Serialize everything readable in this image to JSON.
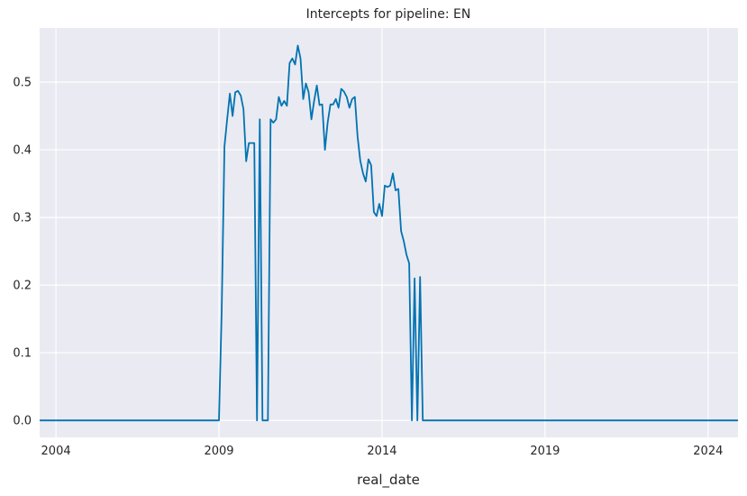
{
  "chart_data": {
    "type": "line",
    "title": "Intercepts for pipeline: EN",
    "xlabel": "real_date",
    "ylabel": "",
    "x_tick_labels": [
      "2004",
      "2009",
      "2014",
      "2019",
      "2024"
    ],
    "y_tick_labels": [
      "0.0",
      "0.1",
      "0.2",
      "0.3",
      "0.4",
      "0.5"
    ],
    "xlim": [
      "2003-07",
      "2024-12"
    ],
    "ylim": [
      -0.025,
      0.58
    ],
    "grid": true,
    "legend": "none",
    "series": [
      {
        "color": "#0173b2",
        "x": [
          "2003-07",
          "2009-01",
          "2009-02",
          "2009-03",
          "2009-04",
          "2009-05",
          "2009-06",
          "2009-07",
          "2009-08",
          "2009-09",
          "2009-10",
          "2009-11",
          "2009-12",
          "2010-01",
          "2010-02",
          "2010-03",
          "2010-04",
          "2010-05",
          "2010-06",
          "2010-07",
          "2010-08",
          "2010-09",
          "2010-10",
          "2010-11",
          "2010-12",
          "2011-01",
          "2011-02",
          "2011-03",
          "2011-04",
          "2011-05",
          "2011-06",
          "2011-07",
          "2011-08",
          "2011-09",
          "2011-10",
          "2011-11",
          "2011-12",
          "2012-01",
          "2012-02",
          "2012-03",
          "2012-04",
          "2012-05",
          "2012-06",
          "2012-07",
          "2012-08",
          "2012-09",
          "2012-10",
          "2012-11",
          "2012-12",
          "2013-01",
          "2013-02",
          "2013-03",
          "2013-04",
          "2013-05",
          "2013-06",
          "2013-07",
          "2013-08",
          "2013-09",
          "2013-10",
          "2013-11",
          "2013-12",
          "2014-01",
          "2014-02",
          "2014-03",
          "2014-04",
          "2014-05",
          "2014-06",
          "2014-07",
          "2014-08",
          "2014-09",
          "2014-10",
          "2014-11",
          "2014-12",
          "2015-01",
          "2015-02",
          "2015-03",
          "2015-04",
          "2015-05",
          "2015-06",
          "2015-07",
          "2024-12"
        ],
        "values": [
          0,
          0,
          0.16,
          0.405,
          0.445,
          0.483,
          0.45,
          0.485,
          0.487,
          0.48,
          0.46,
          0.383,
          0.41,
          0.41,
          0.41,
          0,
          0.445,
          0,
          0,
          0,
          0.445,
          0.44,
          0.445,
          0.478,
          0.465,
          0.472,
          0.465,
          0.528,
          0.535,
          0.526,
          0.554,
          0.535,
          0.475,
          0.498,
          0.485,
          0.445,
          0.472,
          0.495,
          0.466,
          0.467,
          0.4,
          0.44,
          0.467,
          0.467,
          0.475,
          0.462,
          0.49,
          0.486,
          0.478,
          0.462,
          0.475,
          0.478,
          0.42,
          0.384,
          0.365,
          0.353,
          0.386,
          0.377,
          0.308,
          0.302,
          0.32,
          0.302,
          0.347,
          0.345,
          0.347,
          0.365,
          0.34,
          0.342,
          0.28,
          0.265,
          0.245,
          0.232,
          0,
          0.21,
          0,
          0.212,
          0,
          0,
          0,
          0,
          0
        ]
      }
    ]
  }
}
